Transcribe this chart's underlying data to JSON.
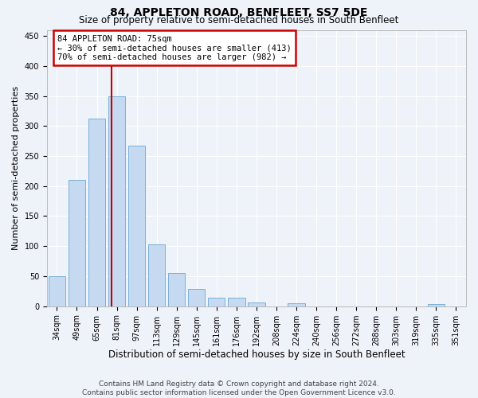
{
  "title": "84, APPLETON ROAD, BENFLEET, SS7 5DE",
  "subtitle": "Size of property relative to semi-detached houses in South Benfleet",
  "xlabel": "Distribution of semi-detached houses by size in South Benfleet",
  "ylabel": "Number of semi-detached properties",
  "footnote": "Contains HM Land Registry data © Crown copyright and database right 2024.\nContains public sector information licensed under the Open Government Licence v3.0.",
  "bar_labels": [
    "34sqm",
    "49sqm",
    "65sqm",
    "81sqm",
    "97sqm",
    "113sqm",
    "129sqm",
    "145sqm",
    "161sqm",
    "176sqm",
    "192sqm",
    "208sqm",
    "224sqm",
    "240sqm",
    "256sqm",
    "272sqm",
    "288sqm",
    "303sqm",
    "319sqm",
    "335sqm",
    "351sqm"
  ],
  "bar_values": [
    50,
    210,
    312,
    350,
    267,
    103,
    55,
    29,
    14,
    14,
    6,
    0,
    5,
    0,
    0,
    0,
    0,
    0,
    0,
    4,
    0
  ],
  "bar_color": "#c5d9f0",
  "bar_edge_color": "#7ab0d8",
  "annotation_text": "84 APPLETON ROAD: 75sqm\n← 30% of semi-detached houses are smaller (413)\n70% of semi-detached houses are larger (982) →",
  "annotation_box_color": "#ffffff",
  "annotation_box_edge_color": "#cc0000",
  "vline_color": "#cc0000",
  "vline_x": 2.72,
  "ylim": [
    0,
    460
  ],
  "yticks": [
    0,
    50,
    100,
    150,
    200,
    250,
    300,
    350,
    400,
    450
  ],
  "bg_color": "#eef2f9",
  "grid_color": "#ffffff",
  "title_fontsize": 10,
  "subtitle_fontsize": 8.5,
  "xlabel_fontsize": 8.5,
  "ylabel_fontsize": 8,
  "tick_fontsize": 7,
  "annot_fontsize": 7.5,
  "footnote_fontsize": 6.5
}
